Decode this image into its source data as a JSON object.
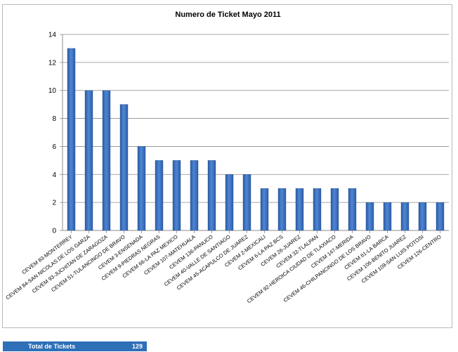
{
  "chart_data": {
    "type": "bar",
    "title": "Numero de Ticket Mayo 2011",
    "xlabel": "",
    "ylabel": "",
    "ylim": [
      0,
      14
    ],
    "yticks": [
      0,
      2,
      4,
      6,
      8,
      10,
      12,
      14
    ],
    "grid": true,
    "legend": "none",
    "bar_color": "#3f73c0",
    "categories": [
      "CEVEM 83-MONTERREY",
      "CEVEM 84-SAN NICOLAS DE LOS GARZA",
      "CEVEM 93-JUCHITAN DE ZARAGOZA",
      "CEVEM 51-TULANCINGO DE BRAVO",
      "CEVEM 3-ENSENADA",
      "CEVEM 9-PIEDRAS NEGRAS",
      "CEVEM 66-LA PAZ MEXICO",
      "CEVEM 107-MATEHUALA",
      "CEVEM 136-PANUCO",
      "CEVEM 40-VALLE DE SANTIAGO",
      "CEVEM 45-ACAPULCO DE JUAREZ",
      "CEVEM 2-MEXICALI",
      "CEVEM 6-LA PAZ BCS",
      "CEVEM 26-JUAREZ",
      "CEVEM 32-TLALPAN",
      "CEVEM 92-HEROICA CIUDAD DE TLAXIACO",
      "CEVEM 147-MERIDA",
      "CEVEM 46-CHILPANCINGO DE LOS BRAVO",
      "CEVEM 61-LA BARCA",
      "CEVEM 106-BENITO JUAREZ",
      "CEVEM 109-SAN LUIS POTOSI",
      "CEVEM 126-CENTRO"
    ],
    "values": [
      13,
      10,
      10,
      9,
      6,
      5,
      5,
      5,
      5,
      4,
      4,
      3,
      3,
      3,
      3,
      3,
      3,
      2,
      2,
      2,
      2,
      2
    ]
  },
  "summary": {
    "total_label": "Total de Tickets",
    "total_value": "129"
  }
}
